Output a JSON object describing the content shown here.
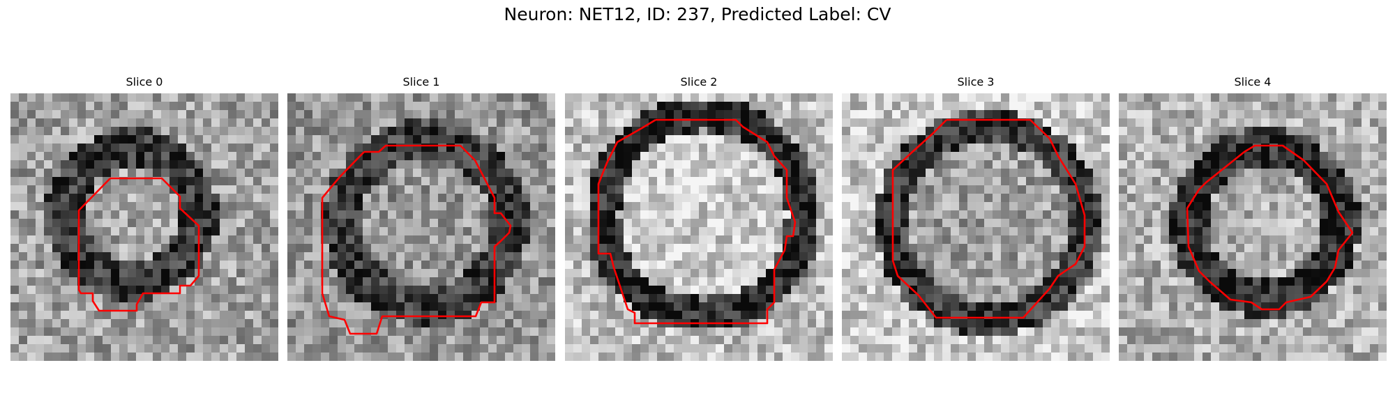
{
  "figure": {
    "title": "Neuron: NET12, ID: 237, Predicted Label: CV",
    "contour_color": "#ff0000",
    "colormap": "gray"
  },
  "panels": [
    {
      "title": "Slice 0"
    },
    {
      "title": "Slice 1"
    },
    {
      "title": "Slice 2"
    },
    {
      "title": "Slice 3"
    },
    {
      "title": "Slice 4"
    }
  ]
}
